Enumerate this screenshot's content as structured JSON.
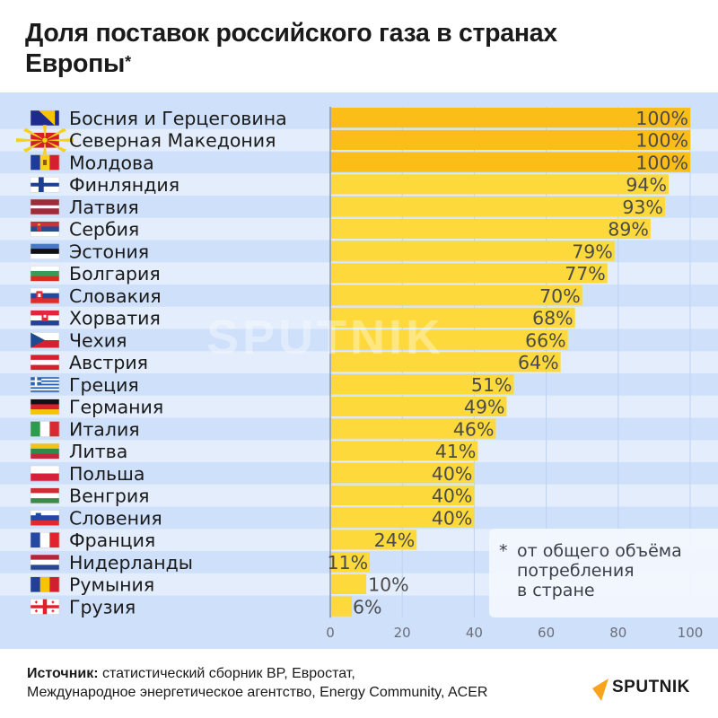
{
  "header": {
    "title_line1": "Доля поставок российского газа в странах",
    "title_line2": "Европы",
    "title_mark": "*"
  },
  "footnote": {
    "star": "*",
    "line1": "от общего объёма",
    "line2": "потребления",
    "line3": "в стране"
  },
  "source": {
    "label": "Источник:",
    "line1": " статистический сборник BP, Евростат,",
    "line2": "Международное энергетическое агентство, Energy Community, ACER"
  },
  "brand": {
    "logo_text": "SPUTNIK",
    "watermark": "SPUTNIK"
  },
  "colors": {
    "bar_full": "#fbbd17",
    "bar": "#fdd93c",
    "band": "#cfe0fa",
    "row_alt": "#e3edfc",
    "label_text": "#4a4a4a",
    "accent_orange": "#f7a61c"
  },
  "chart_data": {
    "type": "bar",
    "orientation": "horizontal",
    "title": "Доля поставок российского газа в странах Европы*",
    "xlabel": "",
    "ylabel": "",
    "xlim": [
      0,
      100
    ],
    "xticks": [
      "0",
      "20",
      "40",
      "60",
      "80",
      "100"
    ],
    "grid": true,
    "value_suffix": "%",
    "categories": [
      {
        "name": "Босния и Герцеговина",
        "flag": "bosnia-flag",
        "value": 100
      },
      {
        "name": "Северная Македония",
        "flag": "north-macedonia-flag",
        "value": 100
      },
      {
        "name": "Молдова",
        "flag": "moldova-flag",
        "value": 100
      },
      {
        "name": "Финляндия",
        "flag": "finland-flag",
        "value": 94
      },
      {
        "name": "Латвия",
        "flag": "latvia-flag",
        "value": 93
      },
      {
        "name": "Сербия",
        "flag": "serbia-flag",
        "value": 89
      },
      {
        "name": "Эстония",
        "flag": "estonia-flag",
        "value": 79
      },
      {
        "name": "Болгария",
        "flag": "bulgaria-flag",
        "value": 77
      },
      {
        "name": "Словакия",
        "flag": "slovakia-flag",
        "value": 70
      },
      {
        "name": "Хорватия",
        "flag": "croatia-flag",
        "value": 68
      },
      {
        "name": "Чехия",
        "flag": "czechia-flag",
        "value": 66
      },
      {
        "name": "Австрия",
        "flag": "austria-flag",
        "value": 64
      },
      {
        "name": "Греция",
        "flag": "greece-flag",
        "value": 51
      },
      {
        "name": "Германия",
        "flag": "germany-flag",
        "value": 49
      },
      {
        "name": "Италия",
        "flag": "italy-flag",
        "value": 46
      },
      {
        "name": "Литва",
        "flag": "lithuania-flag",
        "value": 41
      },
      {
        "name": "Польша",
        "flag": "poland-flag",
        "value": 40
      },
      {
        "name": "Венгрия",
        "flag": "hungary-flag",
        "value": 40
      },
      {
        "name": "Словения",
        "flag": "slovenia-flag",
        "value": 40
      },
      {
        "name": "Франция",
        "flag": "france-flag",
        "value": 24
      },
      {
        "name": "Нидерланды",
        "flag": "netherlands-flag",
        "value": 11
      },
      {
        "name": "Румыния",
        "flag": "romania-flag",
        "value": 10
      },
      {
        "name": "Грузия",
        "flag": "georgia-flag",
        "value": 6
      }
    ]
  }
}
